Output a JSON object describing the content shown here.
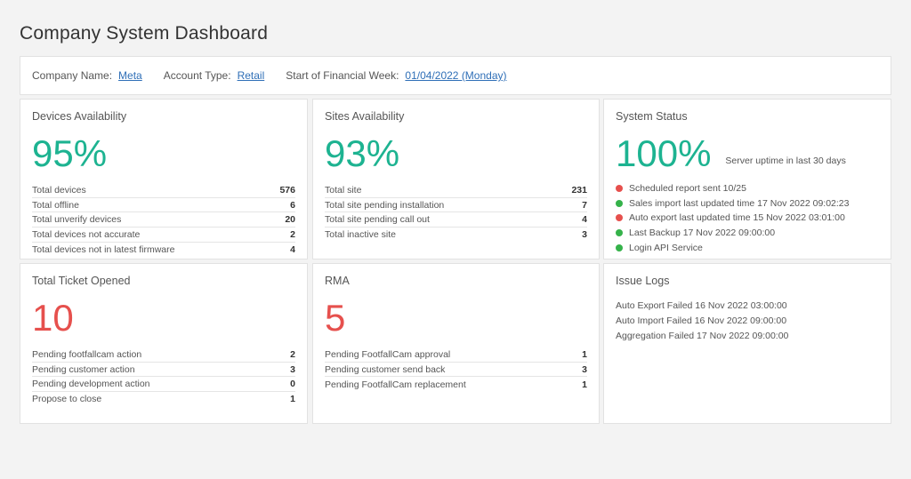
{
  "page": {
    "title": "Company System Dashboard"
  },
  "info": {
    "company_label": "Company Name:",
    "company_value": "Meta",
    "account_label": "Account Type:",
    "account_value": "Retail",
    "week_label": "Start of Financial Week:",
    "week_value": "01/04/2022 (Monday)"
  },
  "devices": {
    "title": "Devices Availability",
    "big": "95%",
    "rows": [
      {
        "label": "Total devices",
        "value": "576"
      },
      {
        "label": "Total offline",
        "value": "6"
      },
      {
        "label": "Total unverify devices",
        "value": "20"
      },
      {
        "label": "Total devices not accurate",
        "value": "2"
      },
      {
        "label": "Total devices not in latest firmware",
        "value": "4"
      }
    ]
  },
  "sites": {
    "title": "Sites Availability",
    "big": "93%",
    "rows": [
      {
        "label": "Total site",
        "value": "231"
      },
      {
        "label": "Total site pending installation",
        "value": "7"
      },
      {
        "label": "Total site pending call out",
        "value": "4"
      },
      {
        "label": "Total inactive site",
        "value": "3"
      }
    ]
  },
  "system": {
    "title": "System Status",
    "big": "100%",
    "subtitle": "Server uptime in last 30 days",
    "colors": {
      "red": "#e6504d",
      "green": "#35b24a"
    },
    "items": [
      {
        "status": "red",
        "text": "Scheduled report sent 10/25"
      },
      {
        "status": "green",
        "text": "Sales import last updated time 17 Nov 2022 09:02:23"
      },
      {
        "status": "red",
        "text": "Auto export last updated time 15 Nov 2022 03:01:00"
      },
      {
        "status": "green",
        "text": "Last Backup 17 Nov 2022 09:00:00"
      },
      {
        "status": "green",
        "text": "Login API Service"
      }
    ]
  },
  "tickets": {
    "title": "Total Ticket Opened",
    "big": "10",
    "rows": [
      {
        "label": "Pending footfallcam action",
        "value": "2"
      },
      {
        "label": "Pending customer action",
        "value": "3"
      },
      {
        "label": "Pending development action",
        "value": "0"
      },
      {
        "label": "Propose to close",
        "value": "1"
      }
    ]
  },
  "rma": {
    "title": "RMA",
    "big": "5",
    "rows": [
      {
        "label": "Pending FootfallCam approval",
        "value": "1"
      },
      {
        "label": "Pending customer send back",
        "value": "3"
      },
      {
        "label": "Pending FootfallCam replacement",
        "value": "1"
      }
    ]
  },
  "logs": {
    "title": "Issue Logs",
    "items": [
      "Auto Export Failed 16 Nov 2022 03:00:00",
      "Auto Import Failed 16 Nov 2022 09:00:00",
      "Aggregation Failed 17 Nov 2022 09:00:00"
    ]
  }
}
